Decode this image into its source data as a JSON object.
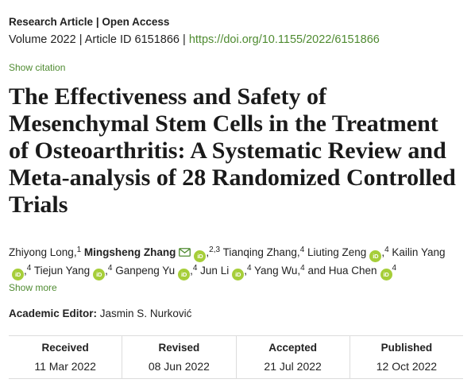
{
  "header": {
    "article_type": "Research Article",
    "access": "Open Access",
    "separator": "|",
    "volume": "Volume 2022",
    "article_id": "Article ID 6151866",
    "doi": "https://doi.org/10.1155/2022/6151866",
    "show_citation": "Show citation"
  },
  "article": {
    "title": "The Effectiveness and Safety of Mesenchymal Stem Cells in the Treatment of Osteoarthritis: A Systematic Review and Meta-analysis of 28 Randomized Controlled Trials"
  },
  "authors": {
    "list": [
      {
        "name": "Zhiyong Long",
        "separator": ",",
        "affiliations": "1",
        "orcid": false
      },
      {
        "name": "Mingsheng Zhang",
        "separator": ",",
        "affiliations": "2,3",
        "orcid": true,
        "email": true
      },
      {
        "name": "Tianqing Zhang",
        "separator": ",",
        "affiliations": "4",
        "orcid": false
      },
      {
        "name": "Liuting Zeng",
        "separator": ",",
        "affiliations": "4",
        "orcid": true
      },
      {
        "name": "Kailin Yang",
        "separator": ",",
        "affiliations": "4",
        "orcid": true
      },
      {
        "name": "Tiejun Yang",
        "separator": ",",
        "affiliations": "4",
        "orcid": true
      },
      {
        "name": "Ganpeng Yu",
        "separator": ",",
        "affiliations": "4",
        "orcid": true
      },
      {
        "name": "Jun Li",
        "separator": ",",
        "affiliations": "4",
        "orcid": true
      },
      {
        "name": "Yang Wu",
        "separator": ",",
        "affiliations": "4",
        "orcid": false
      },
      {
        "name": "Hua Chen",
        "affiliations": "4",
        "orcid": true
      }
    ],
    "conjunction": "and",
    "show_more": "Show more"
  },
  "icons": {
    "email": "mail-icon",
    "orcid": "orcid-icon",
    "orcid_label": "iD"
  },
  "editor": {
    "label": "Academic Editor:",
    "name": "Jasmin S. Nurković"
  },
  "dates": [
    {
      "label": "Received",
      "value": "11 Mar 2022"
    },
    {
      "label": "Revised",
      "value": "08 Jun 2022"
    },
    {
      "label": "Accepted",
      "value": "21 Jul 2022"
    },
    {
      "label": "Published",
      "value": "12 Oct 2022"
    }
  ],
  "colors": {
    "text": "#222222",
    "link": "#4f8b31",
    "orcid": "#a6ce39",
    "rule": "#dcdcdc"
  }
}
